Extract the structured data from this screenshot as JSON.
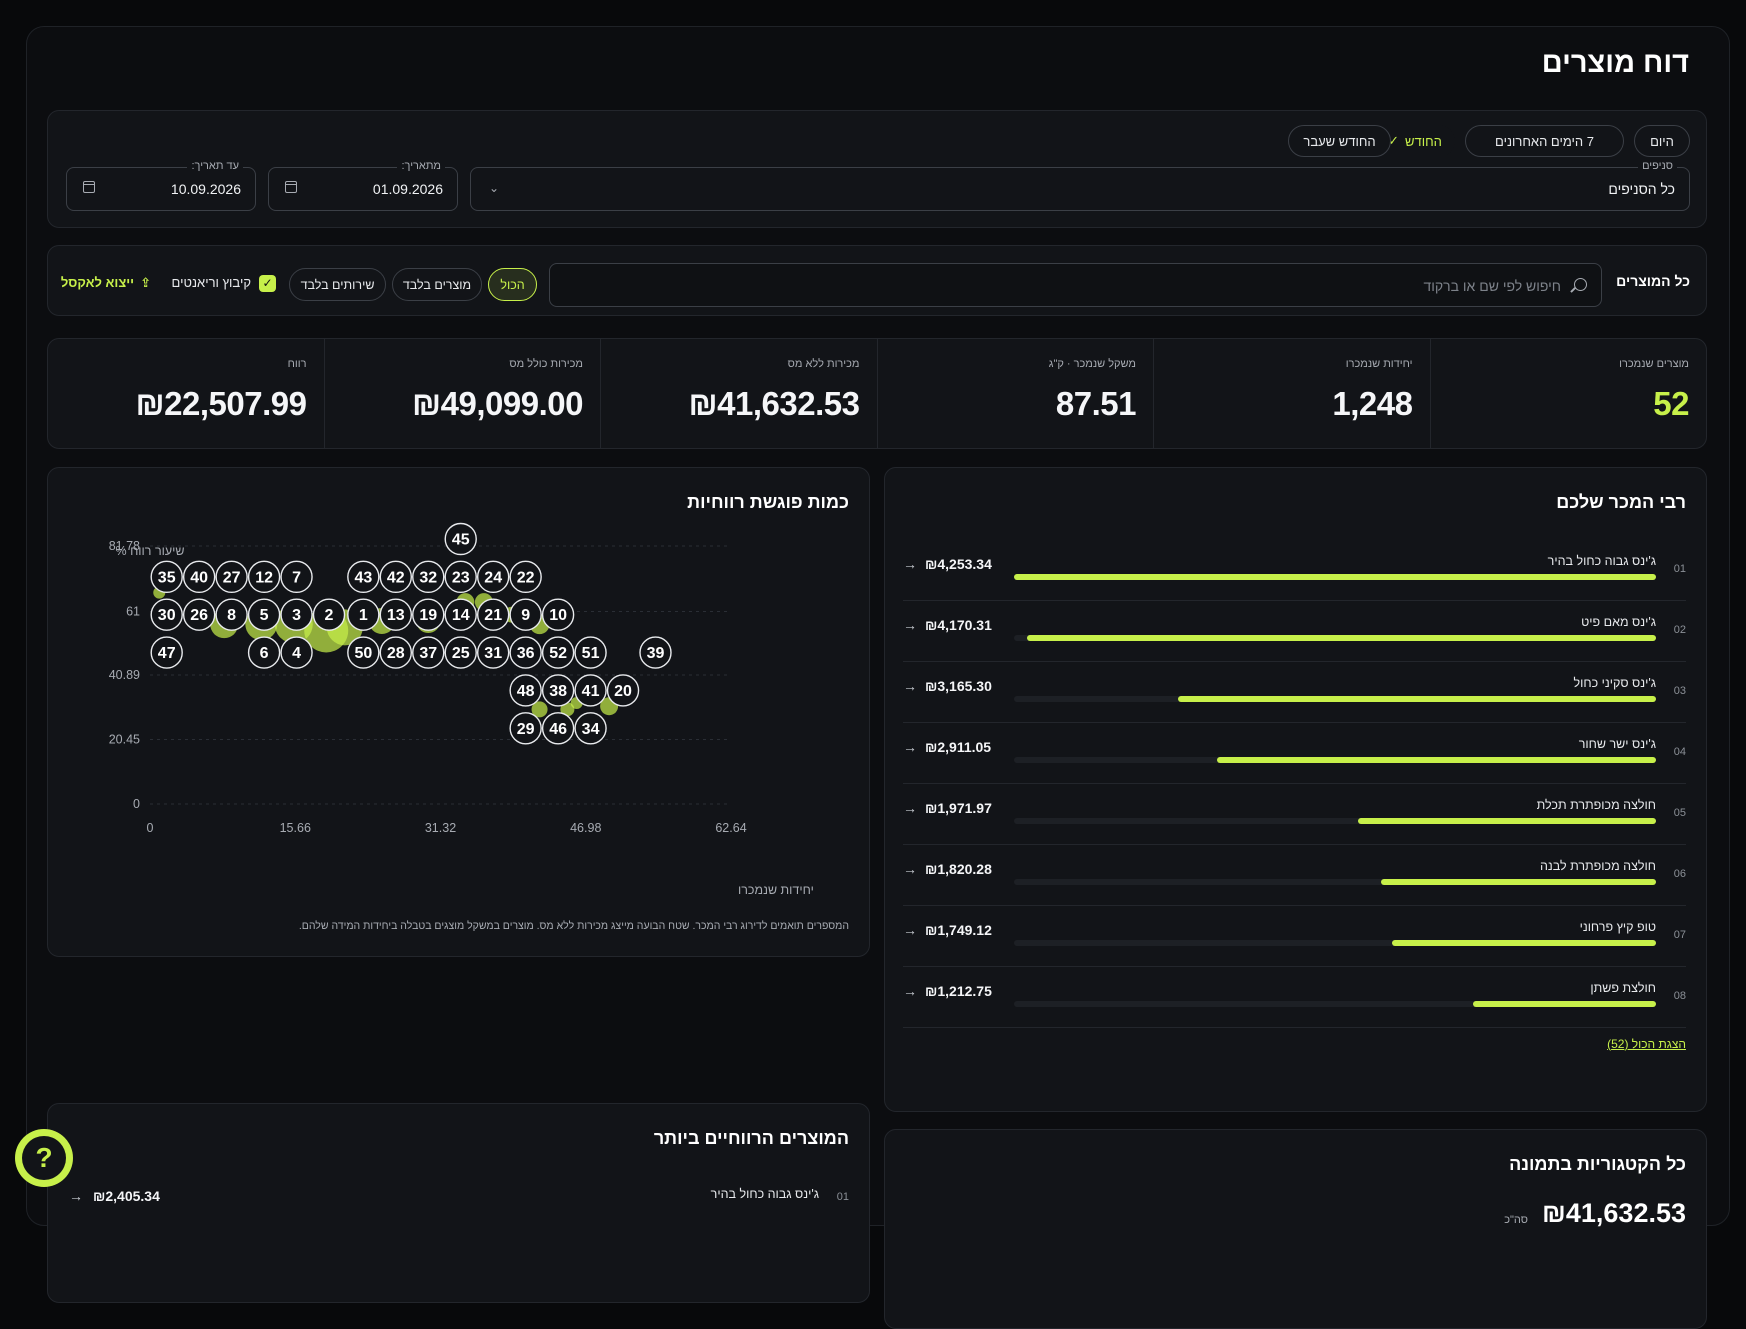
{
  "page": {
    "title": "דוח מוצרים"
  },
  "filters": {
    "quick": [
      {
        "label": "היום",
        "style": "pill"
      },
      {
        "label": "7 הימים האחרונים",
        "style": "pill"
      },
      {
        "label": "החודש",
        "style": "selected",
        "check": "✓"
      },
      {
        "label": "החודש שעבר",
        "style": "pill"
      }
    ],
    "branches": {
      "label": "סניפים",
      "value": "כל הסניפים"
    },
    "from": {
      "label": "מתאריך:",
      "value": "01.09.2026"
    },
    "to": {
      "label": "עד תאריך:",
      "value": "10.09.2026"
    }
  },
  "products_bar": {
    "title": "כל המוצרים",
    "search_placeholder": "חיפוש לפי שם או ברקוד",
    "segments": [
      "הכול",
      "מוצרים בלבד",
      "שירותים בלבד"
    ],
    "active_segment": "הכול",
    "group_variants": {
      "label": "קיבוץ וריאנטים",
      "checked": true
    },
    "export_label": "ייצוא לאקסל"
  },
  "stats": [
    {
      "label": "מוצרים שנמכרו",
      "value": "52",
      "accent": true
    },
    {
      "label": "יחידות שנמכרו",
      "value": "1,248"
    },
    {
      "label": "משקל שנמכר · ק\"ג",
      "value": "87.51"
    },
    {
      "label": "מכירות ללא מס",
      "value": "₪41,632.53"
    },
    {
      "label": "מכירות כולל מס",
      "value": "₪49,099.00"
    },
    {
      "label": "רווח",
      "value": "₪22,507.99"
    }
  ],
  "chart_card": {
    "title": "כמות פוגשת רווחיות",
    "note": "המספרים תואמים לדירוג רבי המכר. שטח הבועה מייצג מכירות ללא מס. מוצרים במשקל מוצגים בטבלה ביחידות המידה שלהם."
  },
  "chart_data": {
    "type": "scatter",
    "xlabel": "יחידות שנמכרו",
    "ylabel": "שיעור רווח %",
    "xlim": [
      0,
      62.64
    ],
    "ylim": [
      0,
      81.78
    ],
    "x_ticks": [
      "0",
      "15.66",
      "31.32",
      "46.98",
      "62.64"
    ],
    "y_ticks": [
      "0",
      "20.45",
      "40.89",
      "61",
      "81.78"
    ],
    "grid": true,
    "accent_color": "#c7f04a",
    "markers": [
      {
        "id": "35",
        "x": 1.8,
        "y": 72
      },
      {
        "id": "40",
        "x": 5.3,
        "y": 72
      },
      {
        "id": "27",
        "x": 8.8,
        "y": 72
      },
      {
        "id": "12",
        "x": 12.3,
        "y": 72
      },
      {
        "id": "7",
        "x": 15.8,
        "y": 72
      },
      {
        "id": "43",
        "x": 23.0,
        "y": 72
      },
      {
        "id": "42",
        "x": 26.5,
        "y": 72
      },
      {
        "id": "32",
        "x": 30.0,
        "y": 72
      },
      {
        "id": "23",
        "x": 33.5,
        "y": 72
      },
      {
        "id": "24",
        "x": 37.0,
        "y": 72
      },
      {
        "id": "22",
        "x": 40.5,
        "y": 72
      },
      {
        "id": "45",
        "x": 33.5,
        "y": 84
      },
      {
        "id": "30",
        "x": 1.8,
        "y": 60
      },
      {
        "id": "26",
        "x": 5.3,
        "y": 60
      },
      {
        "id": "8",
        "x": 8.8,
        "y": 60
      },
      {
        "id": "5",
        "x": 12.3,
        "y": 60
      },
      {
        "id": "3",
        "x": 15.8,
        "y": 60
      },
      {
        "id": "2",
        "x": 19.3,
        "y": 60
      },
      {
        "id": "1",
        "x": 23.0,
        "y": 60
      },
      {
        "id": "13",
        "x": 26.5,
        "y": 60
      },
      {
        "id": "19",
        "x": 30.0,
        "y": 60
      },
      {
        "id": "14",
        "x": 33.5,
        "y": 60
      },
      {
        "id": "21",
        "x": 37.0,
        "y": 60
      },
      {
        "id": "9",
        "x": 40.5,
        "y": 60
      },
      {
        "id": "10",
        "x": 44.0,
        "y": 60
      },
      {
        "id": "47",
        "x": 1.8,
        "y": 48
      },
      {
        "id": "6",
        "x": 12.3,
        "y": 48
      },
      {
        "id": "4",
        "x": 15.8,
        "y": 48
      },
      {
        "id": "50",
        "x": 23.0,
        "y": 48
      },
      {
        "id": "28",
        "x": 26.5,
        "y": 48
      },
      {
        "id": "37",
        "x": 30.0,
        "y": 48
      },
      {
        "id": "25",
        "x": 33.5,
        "y": 48
      },
      {
        "id": "31",
        "x": 37.0,
        "y": 48
      },
      {
        "id": "36",
        "x": 40.5,
        "y": 48
      },
      {
        "id": "52",
        "x": 44.0,
        "y": 48
      },
      {
        "id": "51",
        "x": 47.5,
        "y": 48
      },
      {
        "id": "39",
        "x": 54.5,
        "y": 48
      },
      {
        "id": "48",
        "x": 40.5,
        "y": 36
      },
      {
        "id": "38",
        "x": 44.0,
        "y": 36
      },
      {
        "id": "41",
        "x": 47.5,
        "y": 36
      },
      {
        "id": "20",
        "x": 51.0,
        "y": 36
      },
      {
        "id": "29",
        "x": 40.5,
        "y": 24
      },
      {
        "id": "46",
        "x": 44.0,
        "y": 24
      },
      {
        "id": "34",
        "x": 47.5,
        "y": 24
      }
    ],
    "bubbles": [
      {
        "x": 1,
        "y": 67,
        "r": 6
      },
      {
        "x": 8,
        "y": 57,
        "r": 14
      },
      {
        "x": 12,
        "y": 57,
        "r": 16
      },
      {
        "x": 15.5,
        "y": 57,
        "r": 19
      },
      {
        "x": 19,
        "y": 55,
        "r": 22
      },
      {
        "x": 21,
        "y": 56,
        "r": 18
      },
      {
        "x": 25,
        "y": 58,
        "r": 13
      },
      {
        "x": 30,
        "y": 58,
        "r": 12
      },
      {
        "x": 34,
        "y": 64,
        "r": 9
      },
      {
        "x": 36,
        "y": 64,
        "r": 9
      },
      {
        "x": 39,
        "y": 60,
        "r": 8
      },
      {
        "x": 42,
        "y": 57,
        "r": 10
      },
      {
        "x": 42,
        "y": 30,
        "r": 8
      },
      {
        "x": 45,
        "y": 30,
        "r": 7
      },
      {
        "x": 46,
        "y": 32,
        "r": 6
      },
      {
        "x": 49.5,
        "y": 31,
        "r": 9
      }
    ]
  },
  "best_sellers": {
    "title": "רבי המכר שלכם",
    "items": [
      {
        "rank": "01",
        "name": "ג'ינס גבוה כחול בהיר",
        "amount": "₪4,253.34",
        "share": 1.0
      },
      {
        "rank": "02",
        "name": "ג'ינס מאם פיט",
        "amount": "₪4,170.31",
        "share": 0.98
      },
      {
        "rank": "03",
        "name": "ג'ינס סקיני כחול",
        "amount": "₪3,165.30",
        "share": 0.744
      },
      {
        "rank": "04",
        "name": "ג'ינס ישר שחור",
        "amount": "₪2,911.05",
        "share": 0.684
      },
      {
        "rank": "05",
        "name": "חולצה מכופתרת תכלת",
        "amount": "₪1,971.97",
        "share": 0.464
      },
      {
        "rank": "06",
        "name": "חולצה מכופתרת לבנה",
        "amount": "₪1,820.28",
        "share": 0.428
      },
      {
        "rank": "07",
        "name": "טופ קיץ פרחוני",
        "amount": "₪1,749.12",
        "share": 0.411
      },
      {
        "rank": "08",
        "name": "חולצת פשתן",
        "amount": "₪1,212.75",
        "share": 0.285
      }
    ],
    "show_all": "הצגת הכול (52)"
  },
  "most_profitable": {
    "title": "המוצרים הרווחיים ביותר",
    "first": {
      "rank": "01",
      "name": "ג'ינס גבוה כחול בהיר",
      "amount": "₪2,405.34"
    }
  },
  "categories": {
    "title": "כל הקטגוריות בתמונה",
    "total": "₪41,632.53",
    "total_label": "סה\"כ"
  },
  "help": {
    "icon": "question-icon",
    "glyph": "?"
  }
}
